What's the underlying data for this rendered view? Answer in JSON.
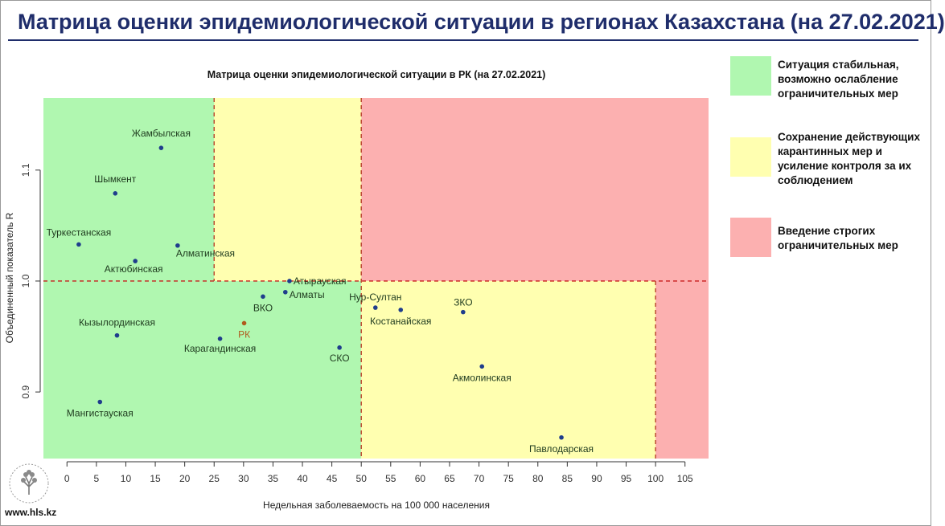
{
  "header": {
    "title": "Матрица оценки эпидемиологической ситуации в регионах Казахстана (на 27.02.2021)"
  },
  "legend": [
    {
      "label": "Ситуация стабильная, возможно ослабление ограничительных мер",
      "color": "#b0f7b0"
    },
    {
      "label": "Сохранение действующих карантинных мер и усиление контроля за их соблюдением",
      "color": "#ffffb0"
    },
    {
      "label": "Введение строгих ограничительных мер",
      "color": "#fcb0b0"
    }
  ],
  "footer": {
    "url": "www.hls.kz"
  },
  "colors": {
    "green": "#b0f7b0",
    "yellow": "#ffffb0",
    "red": "#fcb0b0",
    "line": "#cc2222",
    "point": "#1f3d8c",
    "rk": "#b05a1e"
  },
  "chart_data": {
    "type": "scatter",
    "title": "Матрица оценки эпидемиологической ситуации в РК (на 27.02.2021)",
    "xlabel": "Недельная заболеваемость на 100 000 населения",
    "ylabel": "Объединенный показатель R",
    "xlim": [
      -4,
      109
    ],
    "ylim": [
      0.84,
      1.165
    ],
    "xticks": [
      0,
      5,
      10,
      15,
      20,
      25,
      30,
      35,
      40,
      45,
      50,
      55,
      60,
      65,
      70,
      75,
      80,
      85,
      90,
      95,
      100,
      105
    ],
    "yticks": [
      0.9,
      1.0,
      1.1
    ],
    "ytick_labels": [
      "0.9",
      "1.0",
      "1.1"
    ],
    "thresholds": {
      "x_low": 25,
      "x_mid": 50,
      "x_high": 100,
      "y": 1.0
    },
    "points": [
      {
        "label": "Жамбылская",
        "x": 16,
        "y": 1.12
      },
      {
        "label": "Шымкент",
        "x": 8.2,
        "y": 1.079
      },
      {
        "label": "Туркестанская",
        "x": 2,
        "y": 1.033
      },
      {
        "label": "Алматинская",
        "x": 18.8,
        "y": 1.032
      },
      {
        "label": "Актюбинская",
        "x": 11.6,
        "y": 1.018
      },
      {
        "label": "Атырауская",
        "x": 37.8,
        "y": 1.0
      },
      {
        "label": "Алматы",
        "x": 37.1,
        "y": 0.99
      },
      {
        "label": "ВКО",
        "x": 33.3,
        "y": 0.986
      },
      {
        "label": "РК",
        "x": 30.1,
        "y": 0.962,
        "highlight": true
      },
      {
        "label": "Кызылординская",
        "x": 8.5,
        "y": 0.951
      },
      {
        "label": "Карагандинская",
        "x": 26,
        "y": 0.948
      },
      {
        "label": "СКО",
        "x": 46.3,
        "y": 0.94
      },
      {
        "label": "Нур-Султан",
        "x": 52.4,
        "y": 0.976
      },
      {
        "label": "Костанайская",
        "x": 56.7,
        "y": 0.974
      },
      {
        "label": "ЗКО",
        "x": 67.3,
        "y": 0.972
      },
      {
        "label": "Акмолинская",
        "x": 70.5,
        "y": 0.923
      },
      {
        "label": "Мангистауская",
        "x": 5.6,
        "y": 0.891
      },
      {
        "label": "Павлодарская",
        "x": 84,
        "y": 0.859
      }
    ]
  }
}
